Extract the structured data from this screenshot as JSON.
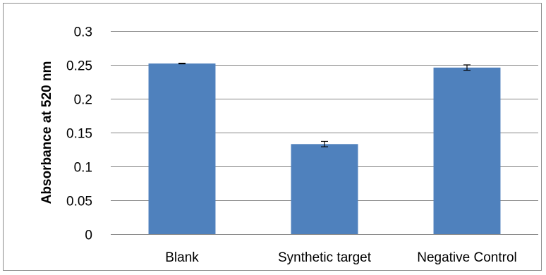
{
  "chart_data": {
    "type": "bar",
    "categories": [
      "Blank",
      "Synthetic target",
      "Negative Control"
    ],
    "values": [
      0.252,
      0.133,
      0.246
    ],
    "error": [
      0.0005,
      0.004,
      0.004
    ],
    "title": "",
    "xlabel": "",
    "ylabel": "Absorbance at 520 nm",
    "ylim": [
      0,
      0.3
    ],
    "yticks": [
      0,
      0.05,
      0.1,
      0.15,
      0.2,
      0.25,
      0.3
    ],
    "ytick_labels": [
      "0",
      "0.05",
      "0.1",
      "0.15",
      "0.2",
      "0.25",
      "0.3"
    ],
    "grid": true,
    "legend": "none",
    "bar_color": "#4f81bd",
    "gridline_color": "#868686"
  }
}
